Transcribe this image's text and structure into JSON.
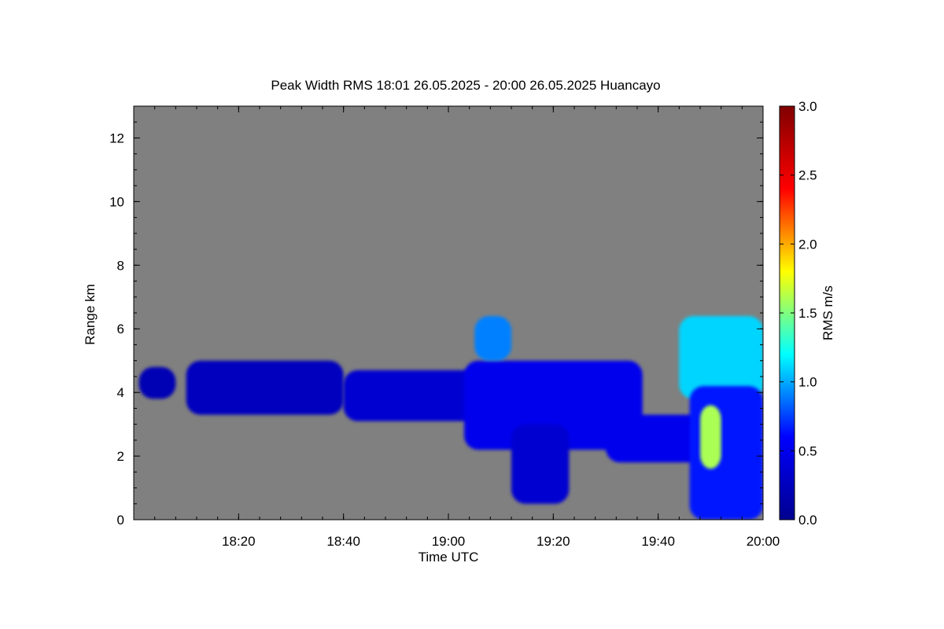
{
  "chart_data": {
    "type": "heatmap",
    "title": "Peak Width RMS   18:01 26.05.2025 - 20:00 26.05.2025 Huancayo",
    "xlabel": "Time UTC",
    "ylabel": "Range km",
    "colorbar_label": "RMS m/s",
    "xlim_minutes": [
      0,
      120
    ],
    "ylim": [
      0,
      13
    ],
    "x_ticks": [
      {
        "minute": 20,
        "label": "18:20"
      },
      {
        "minute": 40,
        "label": "18:40"
      },
      {
        "minute": 60,
        "label": "19:00"
      },
      {
        "minute": 80,
        "label": "19:20"
      },
      {
        "minute": 100,
        "label": "19:40"
      },
      {
        "minute": 120,
        "label": "20:00"
      }
    ],
    "y_ticks": [
      0,
      2,
      4,
      6,
      8,
      10,
      12
    ],
    "colorbar": {
      "min": 0.0,
      "max": 3.0,
      "ticks": [
        "0.0",
        "0.5",
        "1.0",
        "1.5",
        "2.0",
        "2.5",
        "3.0"
      ],
      "colormap": [
        "#00008f",
        "#0000ff",
        "#00ffff",
        "#ffff00",
        "#ff0000",
        "#800000"
      ]
    },
    "background_color": "#808080",
    "echo_regions": [
      {
        "t_start": 1,
        "t_end": 8,
        "r_bottom": 3.8,
        "r_top": 4.8,
        "rms": 0.2
      },
      {
        "t_start": 10,
        "t_end": 40,
        "r_bottom": 3.3,
        "r_top": 5.0,
        "rms": 0.25
      },
      {
        "t_start": 40,
        "t_end": 66,
        "r_bottom": 3.1,
        "r_top": 4.7,
        "rms": 0.35
      },
      {
        "t_start": 63,
        "t_end": 97,
        "r_bottom": 2.2,
        "r_top": 5.0,
        "rms": 0.5
      },
      {
        "t_start": 65,
        "t_end": 72,
        "r_bottom": 5.0,
        "r_top": 6.4,
        "rms": 0.9
      },
      {
        "t_start": 72,
        "t_end": 83,
        "r_bottom": 0.5,
        "r_top": 3.0,
        "rms": 0.35
      },
      {
        "t_start": 90,
        "t_end": 112,
        "r_bottom": 1.8,
        "r_top": 3.3,
        "rms": 0.5
      },
      {
        "t_start": 104,
        "t_end": 120,
        "r_bottom": 3.8,
        "r_top": 6.4,
        "rms": 1.1
      },
      {
        "t_start": 106,
        "t_end": 120,
        "r_bottom": 0.0,
        "r_top": 4.2,
        "rms": 0.65
      },
      {
        "t_start": 108,
        "t_end": 112,
        "r_bottom": 1.6,
        "r_top": 3.6,
        "rms": 1.6
      }
    ]
  }
}
